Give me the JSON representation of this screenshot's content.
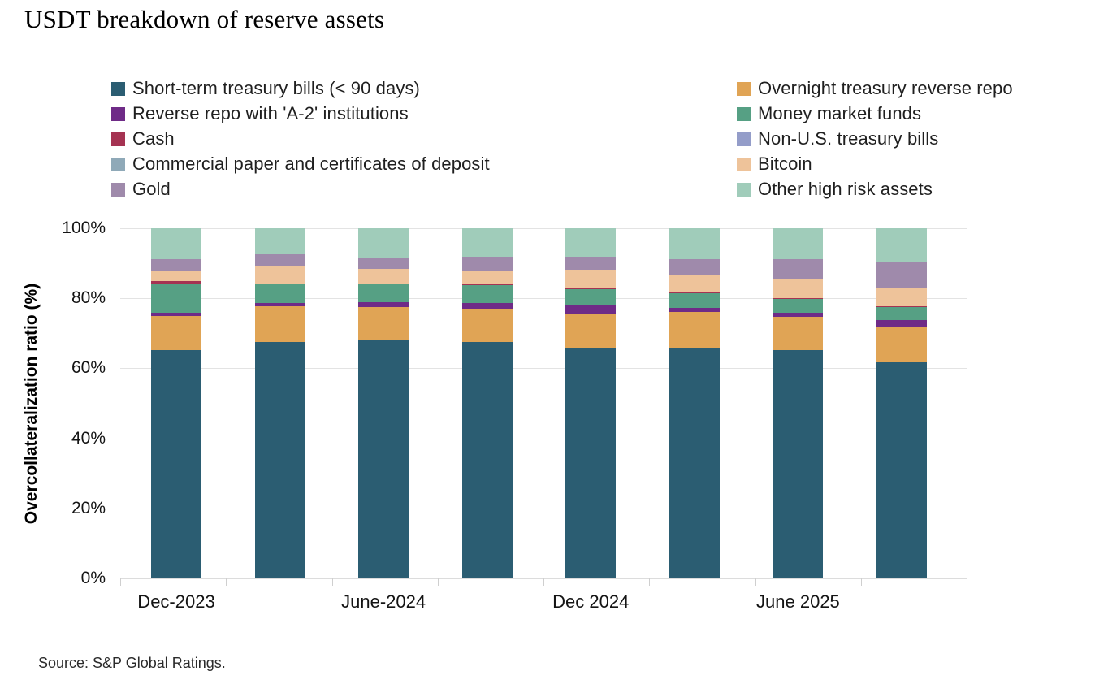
{
  "title": "USDT breakdown of reserve assets",
  "source": "Source: S&P Global Ratings.",
  "y_axis": {
    "label": "Overcollateralization ratio (%)",
    "ticks": [
      "100%",
      "80%",
      "60%",
      "40%",
      "20%",
      "0%"
    ],
    "tick_values": [
      100,
      80,
      60,
      40,
      20,
      0
    ]
  },
  "x_axis": {
    "tick_labels": [
      "Dec-2023",
      "June-2024",
      "Dec 2024",
      "June 2025"
    ],
    "label_bar_indexes": [
      0,
      2,
      4,
      6
    ]
  },
  "chart_data": {
    "type": "bar",
    "stacked": true,
    "bar_count": 8,
    "ylim": [
      0,
      100
    ],
    "ylabel": "Overcollateralization ratio (%)",
    "x_tick_labels": [
      "Dec-2023",
      "June-2024",
      "Dec 2024",
      "June 2025"
    ],
    "x_tick_label_bar_indexes": [
      0,
      2,
      4,
      6
    ],
    "grid": true,
    "legend_position": "top",
    "series": [
      {
        "name": "Short-term treasury bills (< 90 days)",
        "color": "#2b5d72",
        "values": [
          65.2,
          67.6,
          68.2,
          67.5,
          65.9,
          66.0,
          65.3,
          61.8
        ]
      },
      {
        "name": "Overnight treasury reverse repo",
        "color": "#e0a455",
        "values": [
          9.8,
          10.2,
          9.4,
          9.6,
          9.4,
          10.1,
          9.4,
          10.0
        ]
      },
      {
        "name": "Reverse repo with 'A-2' institutions",
        "color": "#6f2b87",
        "values": [
          0.9,
          0.8,
          1.2,
          1.5,
          2.7,
          1.2,
          1.2,
          1.9
        ]
      },
      {
        "name": "Money market funds",
        "color": "#56a084",
        "values": [
          8.4,
          5.4,
          5.3,
          5.2,
          4.7,
          4.3,
          4.1,
          4.0
        ]
      },
      {
        "name": "Cash",
        "color": "#a53352",
        "values": [
          0.7,
          0.3,
          0.2,
          0.3,
          0.2,
          0.1,
          0.1,
          0.1
        ]
      },
      {
        "name": "Non-U.S. treasury bills",
        "color": "#949dc9",
        "values": [
          0,
          0,
          0,
          0,
          0,
          0,
          0,
          0
        ]
      },
      {
        "name": "Commercial paper and certificates of deposit",
        "color": "#8fa9b8",
        "values": [
          0,
          0,
          0,
          0,
          0,
          0,
          0,
          0
        ]
      },
      {
        "name": "Bitcoin",
        "color": "#eec39a",
        "values": [
          2.8,
          4.9,
          4.1,
          3.5,
          5.2,
          4.8,
          5.5,
          5.2
        ]
      },
      {
        "name": "Gold",
        "color": "#9f8aab",
        "values": [
          3.4,
          3.4,
          3.3,
          4.3,
          3.7,
          4.7,
          5.5,
          7.4
        ]
      },
      {
        "name": "Other high risk assets",
        "color": "#a0ccba",
        "values": [
          8.8,
          7.4,
          8.3,
          8.1,
          8.2,
          8.8,
          8.9,
          9.6
        ]
      }
    ]
  }
}
